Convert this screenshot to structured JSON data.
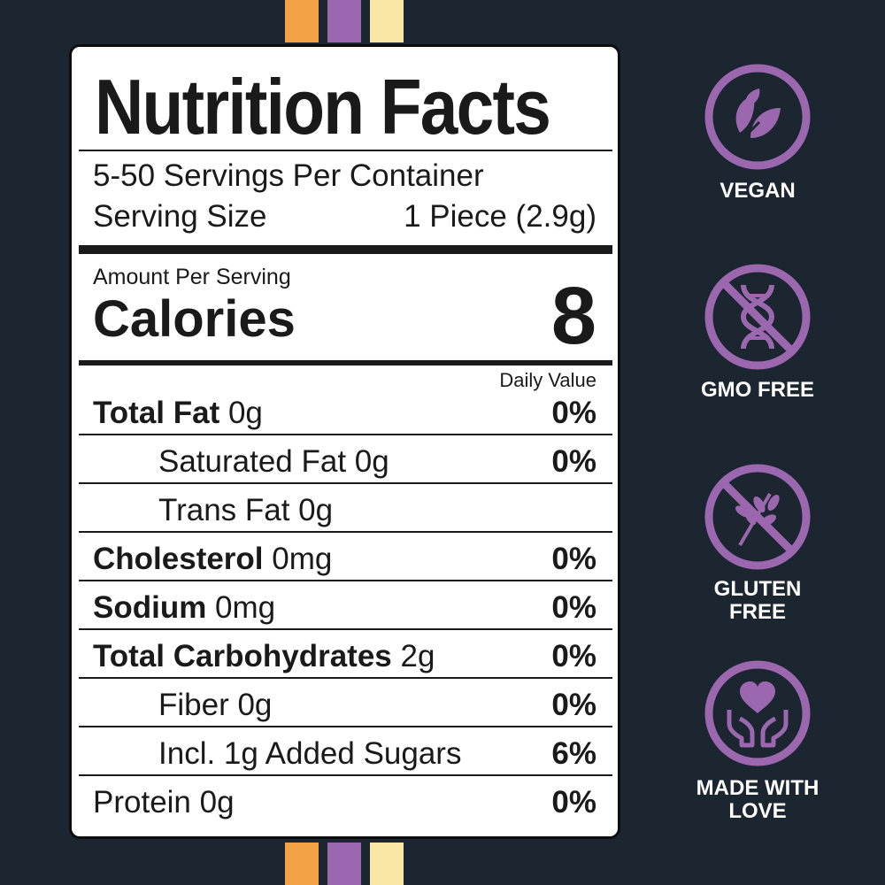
{
  "colors": {
    "background": "#1c2631",
    "accent_purple": "#9b67ae",
    "stripe_orange": "#f2a245",
    "stripe_cream": "#fbe7a5"
  },
  "label": {
    "title": "Nutrition Facts",
    "servings_per_container": "5-50 Servings Per Container",
    "serving_size_label": "Serving Size",
    "serving_size_value": "1 Piece (2.9g)",
    "amount_per_serving": "Amount Per Serving",
    "calories_label": "Calories",
    "calories_value": "8",
    "daily_value_header": "Daily Value",
    "nutrients": [
      {
        "name": "Total Fat",
        "amount": " 0g",
        "pct": "0%"
      },
      {
        "name": "Saturated Fat 0g",
        "pct": "0%"
      },
      {
        "name": "Trans Fat 0g",
        "pct": ""
      },
      {
        "name": "Cholesterol",
        "amount": " 0mg",
        "pct": "0%"
      },
      {
        "name": "Sodium",
        "amount": " 0mg",
        "pct": "0%"
      },
      {
        "name": "Total Carbohydrates",
        "amount": " 2g",
        "pct": "0%"
      },
      {
        "name": "Fiber 0g",
        "pct": "0%"
      },
      {
        "name": "Incl. 1g Added Sugars",
        "pct": "6%"
      },
      {
        "name": "Protein 0g",
        "pct": "0%"
      }
    ]
  },
  "badges": [
    {
      "label": "VEGAN",
      "icon": "leaves-icon"
    },
    {
      "label": "GMO FREE",
      "icon": "no-dna-icon"
    },
    {
      "label": "GLUTEN FREE",
      "icon": "no-wheat-icon"
    },
    {
      "label": "MADE WITH LOVE",
      "icon": "heart-hands-icon"
    }
  ]
}
